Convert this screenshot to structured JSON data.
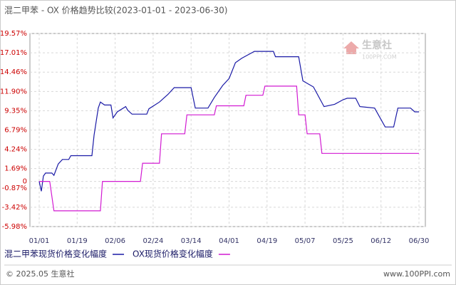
{
  "chart_data": {
    "type": "line",
    "title": "混二甲苯 - OX 价格趋势比较(2023-01-01 - 2023-06-30)",
    "watermark": {
      "name": "生意社",
      "site": "100PPI.COM"
    },
    "footer": {
      "left": "© 2025.05 生意社",
      "right": "www.100PPI.com"
    },
    "xlim": [
      "01/01",
      "06/30"
    ],
    "xticks": [
      "01/01",
      "01/19",
      "02/06",
      "02/24",
      "03/14",
      "04/01",
      "04/19",
      "05/07",
      "05/25",
      "06/12",
      "06/30"
    ],
    "ylim": [
      -5.98,
      19.57
    ],
    "yticks": [
      {
        "value": -5.98,
        "label": "-5.98%"
      },
      {
        "value": -3.42,
        "label": "-3.42%"
      },
      {
        "value": -0.87,
        "label": "-0.87%"
      },
      0,
      {
        "value": 1.69,
        "label": "1.69%"
      },
      {
        "value": 4.24,
        "label": "4.24%"
      },
      {
        "value": 6.79,
        "label": "6.79%"
      },
      {
        "value": 9.35,
        "label": "9.35%"
      },
      {
        "value": 11.9,
        "label": "11.90%"
      },
      {
        "value": 14.46,
        "label": "14.46%"
      },
      {
        "value": 17.01,
        "label": "17.01%"
      },
      {
        "value": 19.57,
        "label": "19.57%"
      }
    ],
    "grid": true,
    "series": [
      {
        "name": "混二甲苯现货价格变化幅度",
        "color": "#1a1aa6",
        "x": [
          "01/01",
          "01/02",
          "01/03",
          "01/04",
          "01/07",
          "01/08",
          "01/10",
          "01/12",
          "01/15",
          "01/16",
          "01/26",
          "01/27",
          "01/29",
          "01/30",
          "02/01",
          "02/04",
          "02/05",
          "02/07",
          "02/11",
          "02/12",
          "02/14",
          "02/21",
          "02/22",
          "02/27",
          "03/03",
          "03/06",
          "03/14",
          "03/16",
          "03/22",
          "03/25",
          "03/29",
          "04/01",
          "04/04",
          "04/07",
          "04/13",
          "04/22",
          "04/23",
          "05/04",
          "05/06",
          "05/11",
          "05/16",
          "05/21",
          "05/25",
          "05/27",
          "05/31",
          "06/02",
          "06/09",
          "06/14",
          "06/18",
          "06/20",
          "06/26",
          "06/28",
          "06/30"
        ],
        "values": [
          0,
          -1.3,
          0.7,
          1.1,
          1.1,
          0.8,
          2.3,
          2.9,
          2.9,
          3.4,
          3.4,
          6.1,
          9.7,
          10.5,
          10.1,
          10.1,
          8.4,
          9.2,
          9.9,
          9.4,
          8.9,
          8.9,
          9.6,
          10.5,
          11.5,
          12.4,
          12.4,
          9.7,
          9.7,
          11.1,
          12.7,
          13.6,
          15.7,
          16.3,
          17.2,
          17.2,
          16.5,
          16.5,
          13.3,
          12.5,
          9.9,
          10.2,
          10.8,
          11.0,
          11.0,
          9.9,
          9.7,
          7.2,
          7.2,
          9.7,
          9.7,
          9.2,
          9.2
        ]
      },
      {
        "name": "OX现货价格变化幅度",
        "color": "#d21ad2",
        "x": [
          "01/01",
          "01/06",
          "01/08",
          "01/30",
          "01/31",
          "02/18",
          "02/19",
          "02/27",
          "02/28",
          "03/11",
          "03/12",
          "03/25",
          "03/26",
          "04/08",
          "04/09",
          "04/17",
          "04/18",
          "05/03",
          "05/04",
          "05/07",
          "05/08",
          "05/14",
          "05/15",
          "06/30"
        ],
        "values": [
          0,
          0,
          -3.9,
          -3.9,
          0,
          0,
          2.4,
          2.4,
          6.3,
          6.3,
          8.8,
          8.8,
          10.0,
          10.0,
          11.4,
          11.4,
          12.6,
          12.6,
          8.8,
          8.8,
          6.3,
          6.3,
          3.7,
          3.7
        ]
      }
    ]
  }
}
